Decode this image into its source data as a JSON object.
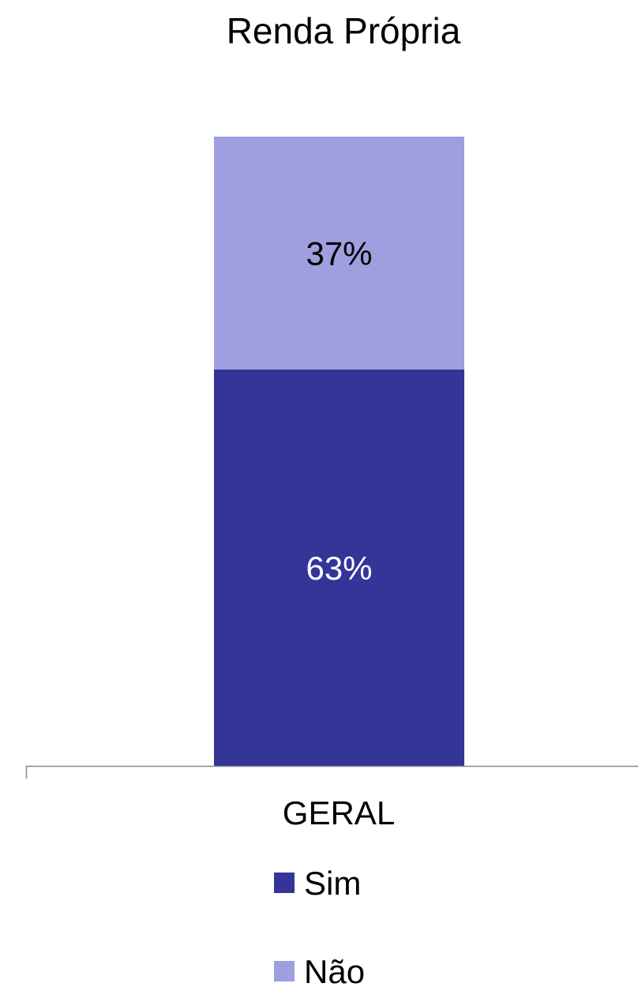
{
  "chart_data": {
    "type": "bar",
    "stacked": true,
    "title": "Renda Própria",
    "categories": [
      "GERAL"
    ],
    "series": [
      {
        "name": "Sim",
        "values": [
          63
        ],
        "label": "63%",
        "color": "#343599",
        "label_color": "#ffffff"
      },
      {
        "name": "Não",
        "values": [
          37
        ],
        "label": "37%",
        "color": "#9f9ede",
        "label_color": "#000000"
      }
    ],
    "ylim": [
      0,
      100
    ],
    "grid": false,
    "legend": "bottom",
    "axis_color": "#898989"
  }
}
